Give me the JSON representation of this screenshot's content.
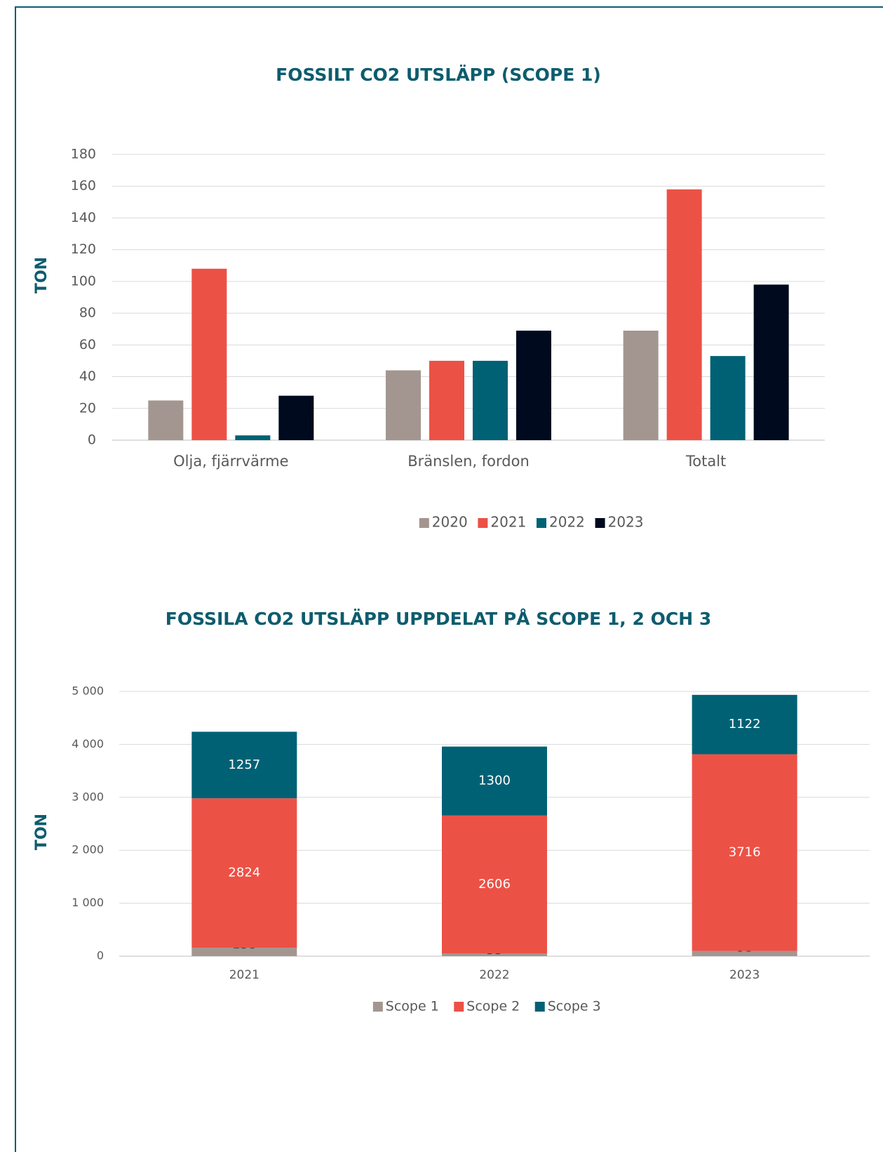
{
  "chart_data": [
    {
      "type": "bar",
      "title": "FOSSILT CO2 UTSLÄPP (SCOPE 1)",
      "y_label": "TON",
      "categories": [
        "Olja, fjärrvärme",
        "Bränslen, fordon",
        "Totalt"
      ],
      "series": [
        {
          "name": "2020",
          "color": "#a39690",
          "values": [
            25,
            44,
            69
          ]
        },
        {
          "name": "2021",
          "color": "#ec5146",
          "values": [
            108,
            50,
            158
          ]
        },
        {
          "name": "2022",
          "color": "#006175",
          "values": [
            3,
            50,
            53
          ]
        },
        {
          "name": "2023",
          "color": "#000a1e",
          "values": [
            28,
            69,
            98
          ]
        }
      ],
      "ylim": [
        0,
        180
      ],
      "yticks": [
        0,
        20,
        40,
        60,
        80,
        100,
        120,
        140,
        160,
        180
      ],
      "grid": true,
      "legend": "bottom"
    },
    {
      "type": "stacked_bar",
      "title": "FOSSILA CO2 UTSLÄPP UPPDELAT PÅ SCOPE 1, 2 OCH 3",
      "y_label": "TON",
      "categories": [
        "2021",
        "2022",
        "2023"
      ],
      "series": [
        {
          "name": "Scope 1",
          "color": "#a39690",
          "values": [
            158,
            53,
            98
          ]
        },
        {
          "name": "Scope 2",
          "color": "#ec5146",
          "values": [
            2824,
            2606,
            3716
          ]
        },
        {
          "name": "Scope 3",
          "color": "#006175",
          "values": [
            1257,
            1300,
            1122
          ]
        }
      ],
      "ylim": [
        0,
        5000
      ],
      "yticks": [
        0,
        {
          "value": 1000,
          "label": "1 000"
        },
        {
          "value": 2000,
          "label": "2 000"
        },
        {
          "value": 3000,
          "label": "3 000"
        },
        {
          "value": 4000,
          "label": "4 000"
        },
        {
          "value": 5000,
          "label": "5 000"
        }
      ],
      "grid": true,
      "legend": "bottom"
    }
  ]
}
